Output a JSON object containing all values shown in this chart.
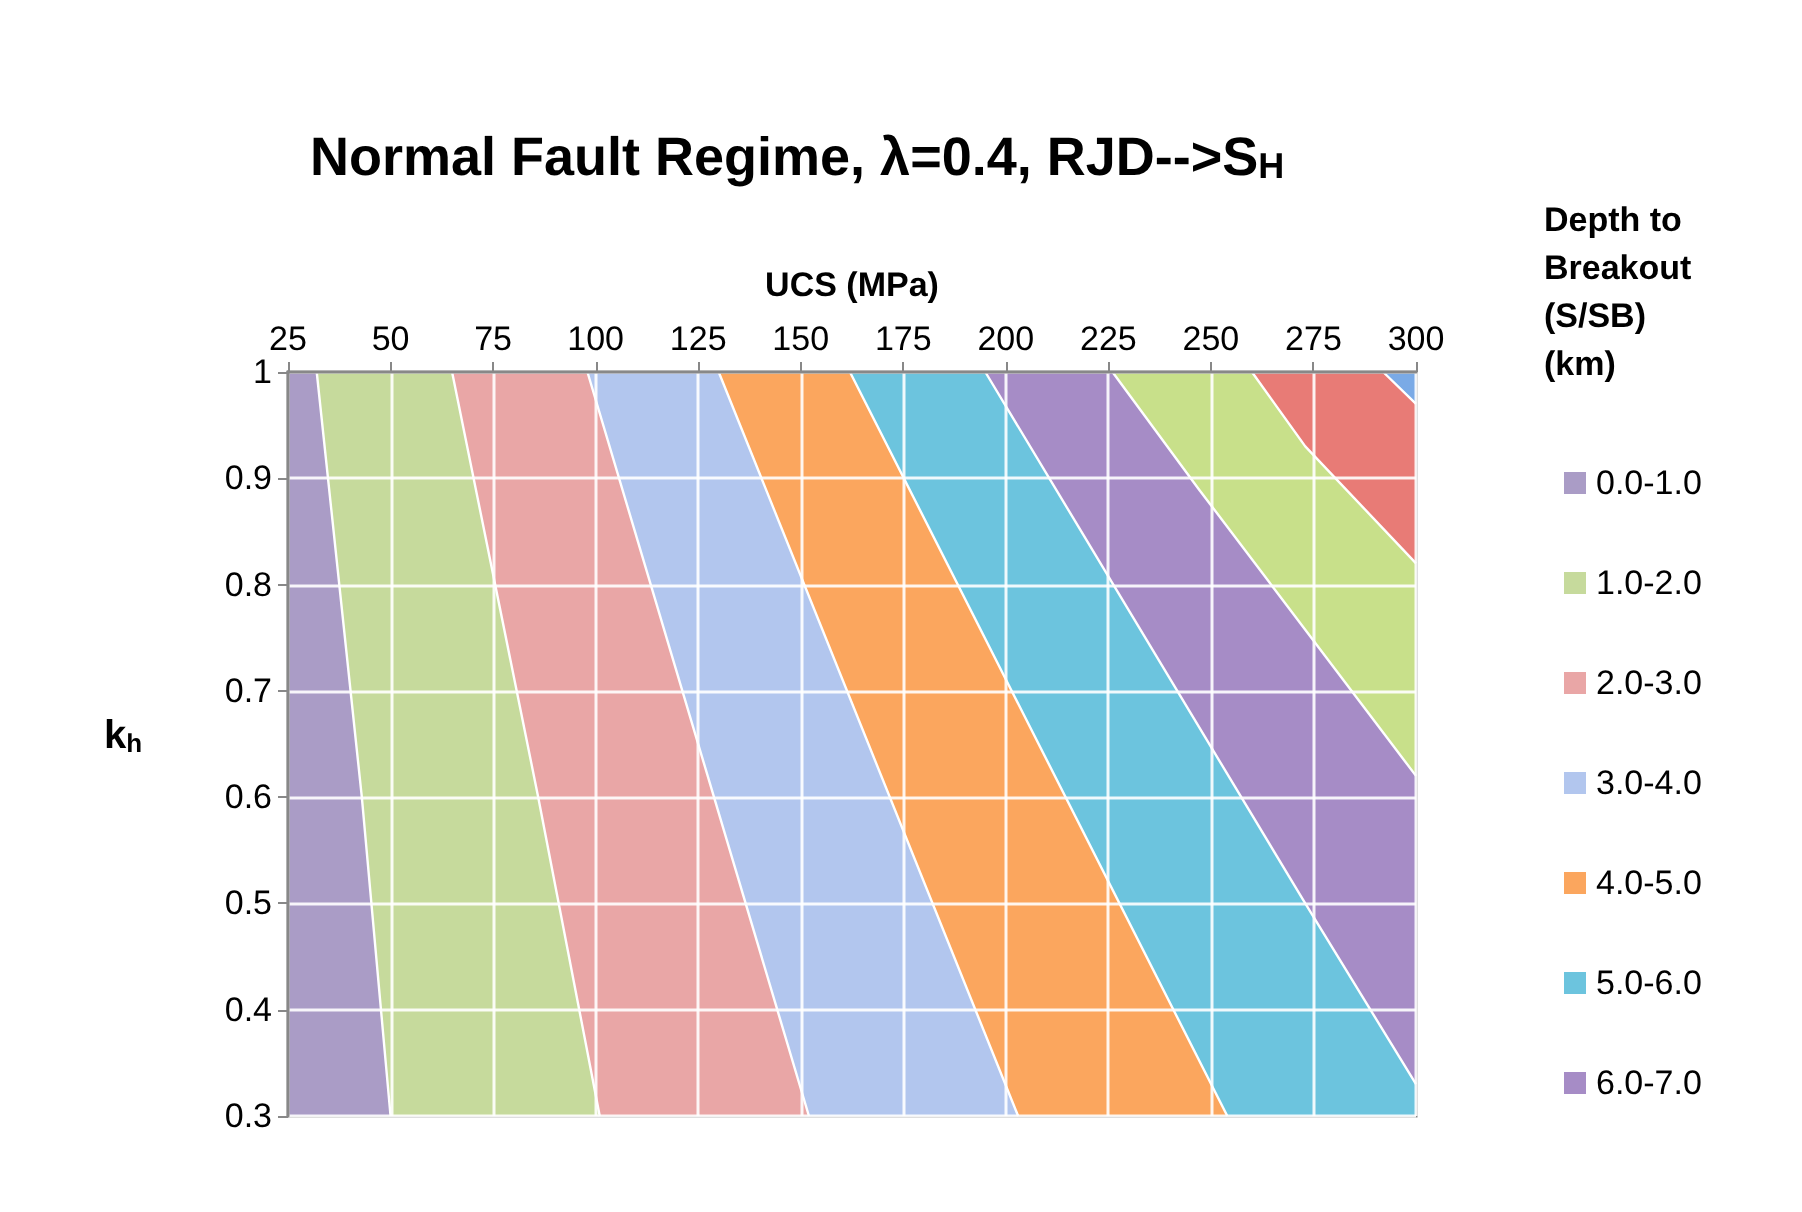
{
  "chart_data": {
    "type": "area",
    "title": "Normal Fault Regime, λ=0.4, RJD-->S$_{H}$",
    "xlabel": "UCS (MPa)",
    "ylabel": "k$_{h}$",
    "legend_title": "Depth to Breakout (S/SB) (km)",
    "xlim": [
      25,
      300
    ],
    "xticks": [
      25,
      50,
      75,
      100,
      125,
      150,
      175,
      200,
      225,
      250,
      275,
      300
    ],
    "ylim": [
      0.3,
      1
    ],
    "yticks": [
      0.3,
      0.4,
      0.5,
      0.6,
      0.7,
      0.8,
      0.9,
      1
    ],
    "grid": true,
    "legend": "right",
    "series": [
      {
        "name": "0.0-1.0",
        "color": "#aa9cc6",
        "x": [
          25,
          32,
          43,
          50
        ],
        "values": [
          1,
          1,
          0.6,
          0.3
        ]
      },
      {
        "name": "1.0-2.0",
        "color": "#c6da9c",
        "x": [
          32,
          65,
          86,
          101
        ],
        "values": [
          1,
          1,
          0.6,
          0.3
        ]
      },
      {
        "name": "2.0-3.0",
        "color": "#e9a6a6",
        "x": [
          65,
          98,
          152
        ],
        "values": [
          1,
          1,
          0.3
        ]
      },
      {
        "name": "3.0-4.0",
        "color": "#b2c6ee",
        "x": [
          98,
          130,
          203
        ],
        "values": [
          1,
          1,
          0.3
        ]
      },
      {
        "name": "4.0-5.0",
        "color": "#fba65e",
        "x": [
          130,
          162,
          254
        ],
        "values": [
          1,
          1,
          0.3
        ]
      },
      {
        "name": "5.0-6.0",
        "color": "#6cc4de",
        "x": [
          162,
          195,
          273,
          300
        ],
        "values": [
          1,
          1,
          0.5,
          0.33
        ]
      },
      {
        "name": "6.0-7.0",
        "color": "#a68cc6",
        "x": [
          195,
          226,
          247,
          300
        ],
        "values": [
          1,
          1,
          0.89,
          0.62
        ]
      },
      {
        "color": "#c8e08a",
        "x": [
          226,
          260,
          273,
          300
        ],
        "values": [
          1,
          1,
          0.93,
          0.82
        ]
      },
      {
        "color": "#e87b76",
        "x": [
          260,
          292,
          300
        ],
        "values": [
          1,
          1,
          0.97
        ]
      },
      {
        "color": "#7aaae6",
        "x": [
          292,
          300
        ],
        "values": [
          1,
          1
        ]
      }
    ]
  }
}
